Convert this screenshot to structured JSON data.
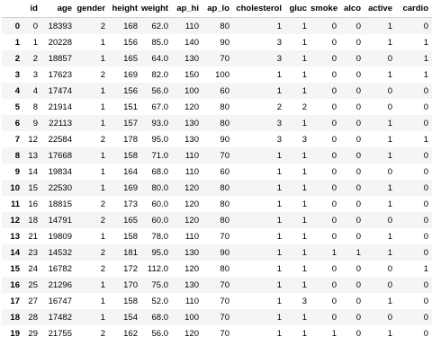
{
  "table": {
    "columns": [
      "",
      "id",
      "age",
      "gender",
      "height",
      "weight",
      "ap_hi",
      "ap_lo",
      "cholesterol",
      "gluc",
      "smoke",
      "alco",
      "active",
      "cardio"
    ],
    "rows": [
      [
        "0",
        "0",
        "18393",
        "2",
        "168",
        "62.0",
        "110",
        "80",
        "1",
        "1",
        "0",
        "0",
        "1",
        "0"
      ],
      [
        "1",
        "1",
        "20228",
        "1",
        "156",
        "85.0",
        "140",
        "90",
        "3",
        "1",
        "0",
        "0",
        "1",
        "1"
      ],
      [
        "2",
        "2",
        "18857",
        "1",
        "165",
        "64.0",
        "130",
        "70",
        "3",
        "1",
        "0",
        "0",
        "0",
        "1"
      ],
      [
        "3",
        "3",
        "17623",
        "2",
        "169",
        "82.0",
        "150",
        "100",
        "1",
        "1",
        "0",
        "0",
        "1",
        "1"
      ],
      [
        "4",
        "4",
        "17474",
        "1",
        "156",
        "56.0",
        "100",
        "60",
        "1",
        "1",
        "0",
        "0",
        "0",
        "0"
      ],
      [
        "5",
        "8",
        "21914",
        "1",
        "151",
        "67.0",
        "120",
        "80",
        "2",
        "2",
        "0",
        "0",
        "0",
        "0"
      ],
      [
        "6",
        "9",
        "22113",
        "1",
        "157",
        "93.0",
        "130",
        "80",
        "3",
        "1",
        "0",
        "0",
        "1",
        "0"
      ],
      [
        "7",
        "12",
        "22584",
        "2",
        "178",
        "95.0",
        "130",
        "90",
        "3",
        "3",
        "0",
        "0",
        "1",
        "1"
      ],
      [
        "8",
        "13",
        "17668",
        "1",
        "158",
        "71.0",
        "110",
        "70",
        "1",
        "1",
        "0",
        "0",
        "1",
        "0"
      ],
      [
        "9",
        "14",
        "19834",
        "1",
        "164",
        "68.0",
        "110",
        "60",
        "1",
        "1",
        "0",
        "0",
        "0",
        "0"
      ],
      [
        "10",
        "15",
        "22530",
        "1",
        "169",
        "80.0",
        "120",
        "80",
        "1",
        "1",
        "0",
        "0",
        "1",
        "0"
      ],
      [
        "11",
        "16",
        "18815",
        "2",
        "173",
        "60.0",
        "120",
        "80",
        "1",
        "1",
        "0",
        "0",
        "1",
        "0"
      ],
      [
        "12",
        "18",
        "14791",
        "2",
        "165",
        "60.0",
        "120",
        "80",
        "1",
        "1",
        "0",
        "0",
        "0",
        "0"
      ],
      [
        "13",
        "21",
        "19809",
        "1",
        "158",
        "78.0",
        "110",
        "70",
        "1",
        "1",
        "0",
        "0",
        "1",
        "0"
      ],
      [
        "14",
        "23",
        "14532",
        "2",
        "181",
        "95.0",
        "130",
        "90",
        "1",
        "1",
        "1",
        "1",
        "1",
        "0"
      ],
      [
        "15",
        "24",
        "16782",
        "2",
        "172",
        "112.0",
        "120",
        "80",
        "1",
        "1",
        "0",
        "0",
        "0",
        "1"
      ],
      [
        "16",
        "25",
        "21296",
        "1",
        "170",
        "75.0",
        "130",
        "70",
        "1",
        "1",
        "0",
        "0",
        "0",
        "0"
      ],
      [
        "17",
        "27",
        "16747",
        "1",
        "158",
        "52.0",
        "110",
        "70",
        "1",
        "3",
        "0",
        "0",
        "1",
        "0"
      ],
      [
        "18",
        "28",
        "17482",
        "1",
        "154",
        "68.0",
        "100",
        "70",
        "1",
        "1",
        "0",
        "0",
        "0",
        "0"
      ],
      [
        "19",
        "29",
        "21755",
        "2",
        "162",
        "56.0",
        "120",
        "70",
        "1",
        "1",
        "1",
        "0",
        "1",
        "0"
      ]
    ]
  }
}
